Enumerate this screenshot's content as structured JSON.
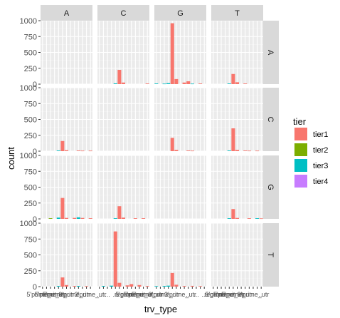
{
  "chart_data": {
    "type": "bar",
    "facet_cols": [
      "A",
      "C",
      "G",
      "T"
    ],
    "facet_rows": [
      "A",
      "C",
      "G",
      "T"
    ],
    "xlabel": "trv_type",
    "ylabel": "count",
    "yticks": [
      0,
      250,
      500,
      750,
      1000
    ],
    "ylim": [
      0,
      1000
    ],
    "x_tick_count": 13,
    "legend": {
      "title": "tier",
      "position": "right",
      "entries": [
        {
          "label": "tier1",
          "color": "#F8766D"
        },
        {
          "label": "tier2",
          "color": "#7CAE00"
        },
        {
          "label": "tier3",
          "color": "#00BFC4"
        },
        {
          "label": "tier4",
          "color": "#C77CFF"
        }
      ]
    },
    "x_tick_labels": [
      "5'prime_utr",
      "5'prime_utr",
      "5'prime_utr",
      "...",
      "3'prime_utr",
      "...",
      "3'prime_utr",
      "...",
      "...",
      "...",
      "region"
    ],
    "panels": [
      {
        "row": "A",
        "col": "A",
        "bars": []
      },
      {
        "row": "A",
        "col": "C",
        "bars": [
          {
            "x": 4,
            "tier": "tier3",
            "value": 12
          },
          {
            "x": 5,
            "tier": "tier1",
            "value": 225
          },
          {
            "x": 6,
            "tier": "tier1",
            "value": 25
          },
          {
            "x": 12,
            "tier": "tier1",
            "value": 10
          }
        ]
      },
      {
        "row": "A",
        "col": "G",
        "bars": [
          {
            "x": 0,
            "tier": "tier3",
            "value": 10
          },
          {
            "x": 2,
            "tier": "tier3",
            "value": 8
          },
          {
            "x": 3,
            "tier": "tier3",
            "value": 15
          },
          {
            "x": 4,
            "tier": "tier1",
            "value": 960
          },
          {
            "x": 5,
            "tier": "tier1",
            "value": 80
          },
          {
            "x": 7,
            "tier": "tier1",
            "value": 25
          },
          {
            "x": 8,
            "tier": "tier1",
            "value": 45
          },
          {
            "x": 9,
            "tier": "tier3",
            "value": 8
          },
          {
            "x": 11,
            "tier": "tier1",
            "value": 10
          }
        ]
      },
      {
        "row": "A",
        "col": "T",
        "bars": [
          {
            "x": 4,
            "tier": "tier3",
            "value": 10
          },
          {
            "x": 5,
            "tier": "tier1",
            "value": 160
          },
          {
            "x": 6,
            "tier": "tier1",
            "value": 30
          },
          {
            "x": 8,
            "tier": "tier1",
            "value": 10
          }
        ]
      },
      {
        "row": "C",
        "col": "A",
        "bars": [
          {
            "x": 4,
            "tier": "tier3",
            "value": 10
          },
          {
            "x": 5,
            "tier": "tier1",
            "value": 160
          },
          {
            "x": 6,
            "tier": "tier1",
            "value": 15
          },
          {
            "x": 9,
            "tier": "tier1",
            "value": 10
          },
          {
            "x": 10,
            "tier": "tier1",
            "value": 8
          },
          {
            "x": 12,
            "tier": "tier1",
            "value": 8
          }
        ]
      },
      {
        "row": "C",
        "col": "C",
        "bars": []
      },
      {
        "row": "C",
        "col": "G",
        "bars": [
          {
            "x": 4,
            "tier": "tier1",
            "value": 210
          },
          {
            "x": 5,
            "tier": "tier1",
            "value": 20
          },
          {
            "x": 8,
            "tier": "tier1",
            "value": 10
          },
          {
            "x": 9,
            "tier": "tier1",
            "value": 8
          }
        ]
      },
      {
        "row": "C",
        "col": "T",
        "bars": [
          {
            "x": 4,
            "tier": "tier3",
            "value": 10
          },
          {
            "x": 5,
            "tier": "tier1",
            "value": 360
          },
          {
            "x": 6,
            "tier": "tier1",
            "value": 20
          },
          {
            "x": 8,
            "tier": "tier1",
            "value": 10
          },
          {
            "x": 9,
            "tier": "tier1",
            "value": 8
          },
          {
            "x": 11,
            "tier": "tier1",
            "value": 8
          }
        ]
      },
      {
        "row": "G",
        "col": "A",
        "bars": [
          {
            "x": 2,
            "tier": "tier2",
            "value": 10
          },
          {
            "x": 4,
            "tier": "tier3",
            "value": 20
          },
          {
            "x": 5,
            "tier": "tier1",
            "value": 330
          },
          {
            "x": 6,
            "tier": "tier1",
            "value": 15
          },
          {
            "x": 8,
            "tier": "tier1",
            "value": 15
          },
          {
            "x": 9,
            "tier": "tier3",
            "value": 25
          },
          {
            "x": 10,
            "tier": "tier1",
            "value": 15
          },
          {
            "x": 12,
            "tier": "tier1",
            "value": 10
          }
        ]
      },
      {
        "row": "G",
        "col": "C",
        "bars": [
          {
            "x": 4,
            "tier": "tier3",
            "value": 10
          },
          {
            "x": 5,
            "tier": "tier1",
            "value": 200
          },
          {
            "x": 6,
            "tier": "tier1",
            "value": 20
          },
          {
            "x": 9,
            "tier": "tier1",
            "value": 10
          },
          {
            "x": 11,
            "tier": "tier1",
            "value": 10
          }
        ]
      },
      {
        "row": "G",
        "col": "G",
        "bars": []
      },
      {
        "row": "G",
        "col": "T",
        "bars": [
          {
            "x": 4,
            "tier": "tier3",
            "value": 10
          },
          {
            "x": 5,
            "tier": "tier1",
            "value": 155
          },
          {
            "x": 6,
            "tier": "tier1",
            "value": 15
          },
          {
            "x": 9,
            "tier": "tier1",
            "value": 10
          },
          {
            "x": 11,
            "tier": "tier3",
            "value": 10
          },
          {
            "x": 12,
            "tier": "tier1",
            "value": 8
          }
        ]
      },
      {
        "row": "T",
        "col": "A",
        "bars": [
          {
            "x": 4,
            "tier": "tier3",
            "value": 10
          },
          {
            "x": 5,
            "tier": "tier1",
            "value": 145
          },
          {
            "x": 6,
            "tier": "tier1",
            "value": 25
          },
          {
            "x": 8,
            "tier": "tier1",
            "value": 10
          },
          {
            "x": 9,
            "tier": "tier3",
            "value": 10
          },
          {
            "x": 11,
            "tier": "tier1",
            "value": 8
          }
        ]
      },
      {
        "row": "T",
        "col": "C",
        "bars": [
          {
            "x": 1,
            "tier": "tier3",
            "value": 10
          },
          {
            "x": 3,
            "tier": "tier3",
            "value": 15
          },
          {
            "x": 4,
            "tier": "tier1",
            "value": 870
          },
          {
            "x": 5,
            "tier": "tier1",
            "value": 60
          },
          {
            "x": 7,
            "tier": "tier1",
            "value": 20
          },
          {
            "x": 8,
            "tier": "tier1",
            "value": 40
          },
          {
            "x": 10,
            "tier": "tier1",
            "value": 25
          },
          {
            "x": 12,
            "tier": "tier1",
            "value": 10
          }
        ]
      },
      {
        "row": "T",
        "col": "G",
        "bars": [
          {
            "x": 0,
            "tier": "tier3",
            "value": 8
          },
          {
            "x": 2,
            "tier": "tier3",
            "value": 10
          },
          {
            "x": 3,
            "tier": "tier3",
            "value": 15
          },
          {
            "x": 4,
            "tier": "tier1",
            "value": 215
          },
          {
            "x": 5,
            "tier": "tier1",
            "value": 30
          },
          {
            "x": 7,
            "tier": "tier1",
            "value": 10
          },
          {
            "x": 9,
            "tier": "tier1",
            "value": 12
          },
          {
            "x": 11,
            "tier": "tier1",
            "value": 8
          }
        ]
      },
      {
        "row": "T",
        "col": "T",
        "bars": []
      }
    ]
  }
}
